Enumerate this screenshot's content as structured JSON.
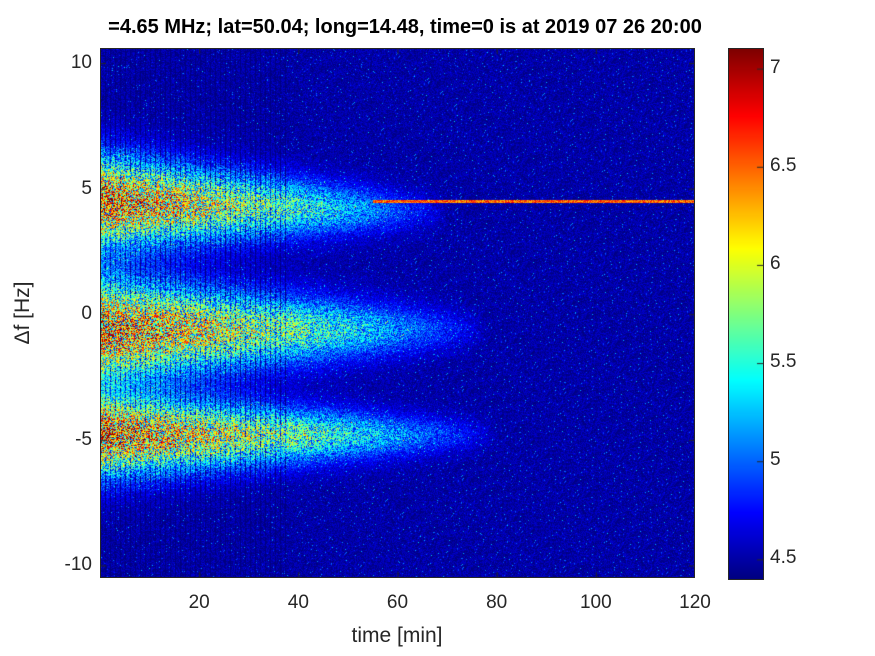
{
  "chart_data": {
    "type": "heatmap",
    "title": "=4.65 MHz;  lat=50.04; long=14.48, time=0 is at 2019 07 26 20:00",
    "xlabel": "time [min]",
    "ylabel": "Δf [Hz]",
    "xlim": [
      0,
      120
    ],
    "ylim": [
      -10.5,
      10.6
    ],
    "xticks": [
      20,
      40,
      60,
      80,
      100,
      120
    ],
    "yticks": [
      10,
      5,
      0,
      -5,
      -10
    ],
    "colormap": "jet",
    "clim": [
      4.4,
      7.1
    ],
    "colorbar_ticks": [
      7,
      6.5,
      6,
      5.5,
      5,
      4.5
    ],
    "background_level": 4.5,
    "bands": [
      {
        "center_hz": 4.5,
        "peak_level": 7.1,
        "fade_end_min": 70,
        "width_hz_start": 2.0
      },
      {
        "center_hz": -0.6,
        "peak_level": 7.1,
        "fade_end_min": 78,
        "width_hz_start": 2.2
      },
      {
        "center_hz": -4.8,
        "peak_level": 7.1,
        "fade_end_min": 80,
        "width_hz_start": 1.8
      }
    ],
    "carrier_line": {
      "freq_hz": 4.5,
      "start_min": 55,
      "end_min": 120,
      "level": 6.2
    }
  }
}
